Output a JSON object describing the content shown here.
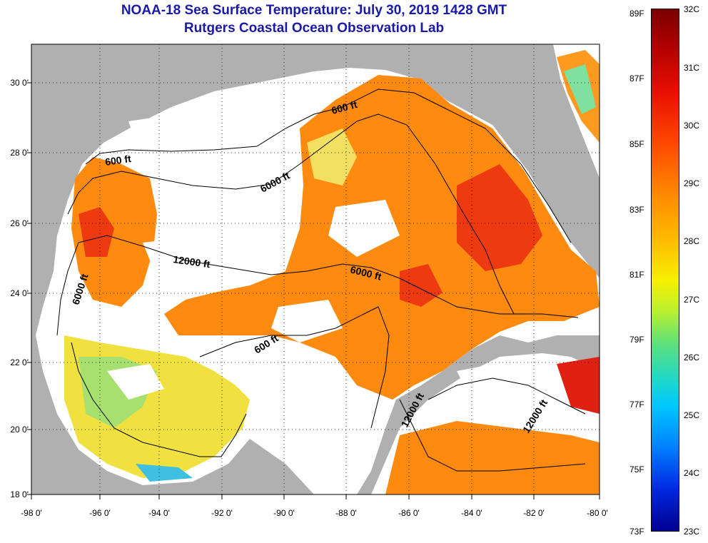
{
  "title_line1": "NOAA-18 Sea Surface Temperature:  July 30, 2019 1428 GMT",
  "title_line2": "Rutgers Coastal Ocean Observation Lab",
  "map": {
    "lat_labels": [
      "30 0'",
      "28 0'",
      "26 0'",
      "24 0'",
      "22 0'",
      "20 0'",
      "18 0'"
    ],
    "lon_labels": [
      "-98 0'",
      "-96 0'",
      "-94 0'",
      "-92 0'",
      "-90 0'",
      "-88 0'",
      "-86 0'",
      "-84 0'",
      "-82 0'",
      "-80 0'"
    ],
    "contour_labels": [
      "600 ft",
      "600 ft",
      "6000 ft",
      "12000 ft",
      "6000 ft",
      "6000 ft",
      "600 ft",
      "12000 ft",
      "12000 ft"
    ],
    "colors": {
      "land": "#b0b0b0",
      "cloud": "#ffffff",
      "warm": "#ff7a10",
      "hot": "#e82810",
      "cool": "#f0e040",
      "cold": "#40c0e0",
      "frame": "#000000"
    }
  },
  "colorbar": {
    "fahrenheit": [
      "89F",
      "87F",
      "85F",
      "83F",
      "81F",
      "79F",
      "77F",
      "75F",
      "73F"
    ],
    "celsius": [
      "32C",
      "31C",
      "30C",
      "29C",
      "28C",
      "27C",
      "26C",
      "25C",
      "24C",
      "23C"
    ]
  }
}
